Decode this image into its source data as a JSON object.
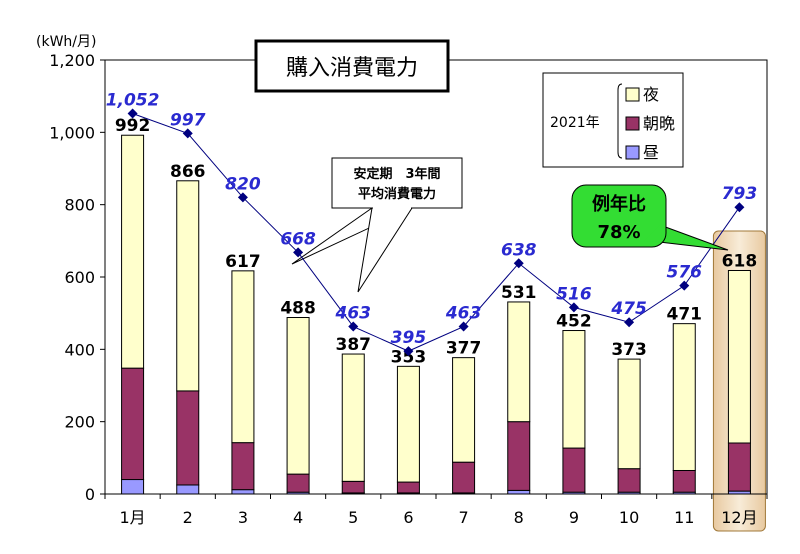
{
  "chart_data": {
    "type": "bar",
    "title": "購入消費電力",
    "unit_label": "(kWh/月)",
    "categories": [
      "1月",
      "2",
      "3",
      "4",
      "5",
      "6",
      "7",
      "8",
      "9",
      "10",
      "11",
      "12月"
    ],
    "ylim": [
      0,
      1200
    ],
    "yticks": [
      "0",
      "200",
      "400",
      "600",
      "800",
      "1,000",
      "1,200"
    ],
    "stacked": true,
    "series": [
      {
        "name": "昼",
        "color": "#9999ff",
        "values": [
          40,
          25,
          12,
          5,
          3,
          3,
          3,
          10,
          5,
          5,
          5,
          8
        ]
      },
      {
        "name": "朝晩",
        "color": "#993366",
        "values": [
          308,
          260,
          130,
          50,
          32,
          30,
          85,
          190,
          122,
          65,
          60,
          133
        ]
      },
      {
        "name": "夜",
        "color": "#ffffcc",
        "values": [
          644,
          581,
          475,
          433,
          352,
          320,
          289,
          331,
          325,
          303,
          406,
          477
        ]
      }
    ],
    "totals": [
      "992",
      "866",
      "617",
      "488",
      "387",
      "353",
      "377",
      "531",
      "452",
      "373",
      "471",
      "618"
    ],
    "line_series": {
      "name": "安定期 3年間 平均消費電力",
      "color": "#000080",
      "values": [
        1052,
        997,
        820,
        668,
        463,
        395,
        463,
        638,
        516,
        475,
        576,
        793
      ],
      "labels": [
        "1,052",
        "997",
        "820",
        "668",
        "463",
        "395",
        "463",
        "638",
        "516",
        "475",
        "576",
        "793"
      ]
    },
    "legend": {
      "position": "top-right",
      "year": "2021年",
      "entries": [
        "夜",
        "朝晩",
        "昼"
      ]
    },
    "callout_average": {
      "line1": "安定期　3年間",
      "line2": "平均消費電力"
    },
    "callout_ratio": {
      "line1": "例年比",
      "line2": "78%"
    },
    "highlight_category": "12月",
    "grid": false
  }
}
